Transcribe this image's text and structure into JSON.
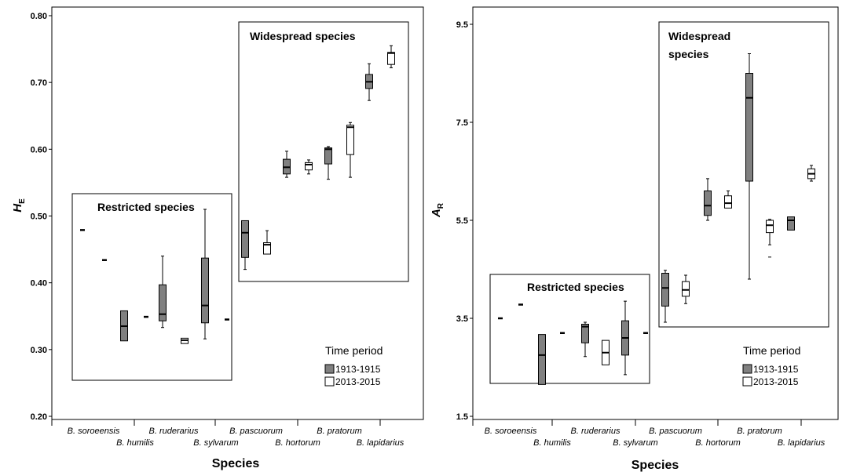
{
  "chart_data": [
    {
      "type": "box",
      "panel": "left",
      "ylabel_main": "H",
      "ylabel_sub": "E",
      "xlabel": "Species",
      "ylim": [
        0.2,
        0.8
      ],
      "yticks": [
        "0.20",
        "0.30",
        "0.40",
        "0.50",
        "0.60",
        "0.70",
        "0.80"
      ],
      "categories": [
        "B. soroeensis",
        "B. humilis",
        "B. ruderarius",
        "B. sylvarum",
        "B. pascuorum",
        "B. hortorum",
        "B. pratorum",
        "B. lapidarius"
      ],
      "series": [
        {
          "name": "1913-1915",
          "color": "#808080",
          "boxes": [
            {
              "min": 0.479,
              "q1": 0.479,
              "median": 0.479,
              "q3": 0.479,
              "max": 0.479
            },
            {
              "min": 0.313,
              "q1": 0.313,
              "median": 0.335,
              "q3": 0.358,
              "max": 0.358
            },
            {
              "min": 0.333,
              "q1": 0.343,
              "median": 0.353,
              "q3": 0.397,
              "max": 0.44
            },
            {
              "min": 0.316,
              "q1": 0.34,
              "median": 0.366,
              "q3": 0.437,
              "max": 0.51
            },
            {
              "min": 0.42,
              "q1": 0.438,
              "median": 0.475,
              "q3": 0.493,
              "max": 0.493
            },
            {
              "min": 0.558,
              "q1": 0.563,
              "median": 0.573,
              "q3": 0.585,
              "max": 0.597
            },
            {
              "min": 0.555,
              "q1": 0.578,
              "median": 0.6,
              "q3": 0.602,
              "max": 0.604
            },
            {
              "min": 0.673,
              "q1": 0.691,
              "median": 0.701,
              "q3": 0.712,
              "max": 0.728
            }
          ]
        },
        {
          "name": "2013-2015",
          "color": "#ffffff",
          "boxes": [
            {
              "min": 0.434,
              "q1": 0.434,
              "median": 0.434,
              "q3": 0.434,
              "max": 0.434
            },
            {
              "min": 0.349,
              "q1": 0.349,
              "median": 0.349,
              "q3": 0.349,
              "max": 0.349
            },
            {
              "min": 0.309,
              "q1": 0.309,
              "median": 0.314,
              "q3": 0.317,
              "max": 0.317
            },
            {
              "min": 0.345,
              "q1": 0.345,
              "median": 0.345,
              "q3": 0.345,
              "max": 0.345
            },
            {
              "min": 0.443,
              "q1": 0.443,
              "median": 0.457,
              "q3": 0.46,
              "max": 0.478
            },
            {
              "min": 0.563,
              "q1": 0.569,
              "median": 0.577,
              "q3": 0.58,
              "max": 0.584
            },
            {
              "min": 0.558,
              "q1": 0.592,
              "median": 0.633,
              "q3": 0.636,
              "max": 0.64
            },
            {
              "min": 0.722,
              "q1": 0.727,
              "median": 0.744,
              "q3": 0.745,
              "max": 0.755
            }
          ]
        }
      ],
      "groups": {
        "restricted": "Restricted species",
        "widespread": "Widespread species"
      },
      "legend": {
        "title": "Time period",
        "entries": [
          "1913-1915",
          "2013-2015"
        ],
        "position": "bottom-right"
      }
    },
    {
      "type": "box",
      "panel": "right",
      "ylabel_main": "A",
      "ylabel_sub": "R",
      "xlabel": "Species",
      "ylim": [
        1.5,
        9.5
      ],
      "yticks": [
        "1.5",
        "3.5",
        "5.5",
        "7.5",
        "9.5"
      ],
      "categories": [
        "B. soroeensis",
        "B. humilis",
        "B. ruderarius",
        "B. sylvarum",
        "B. pascuorum",
        "B. hortorum",
        "B. pratorum",
        "B. lapidarius"
      ],
      "series": [
        {
          "name": "1913-1915",
          "color": "#808080",
          "boxes": [
            {
              "min": 3.5,
              "q1": 3.5,
              "median": 3.5,
              "q3": 3.5,
              "max": 3.5
            },
            {
              "min": 2.15,
              "q1": 2.15,
              "median": 2.75,
              "q3": 3.17,
              "max": 3.17
            },
            {
              "min": 2.72,
              "q1": 3.0,
              "median": 3.33,
              "q3": 3.38,
              "max": 3.42
            },
            {
              "min": 2.35,
              "q1": 2.75,
              "median": 3.1,
              "q3": 3.45,
              "max": 3.85
            },
            {
              "min": 3.42,
              "q1": 3.75,
              "median": 4.12,
              "q3": 4.42,
              "max": 4.48
            },
            {
              "min": 5.5,
              "q1": 5.6,
              "median": 5.8,
              "q3": 6.1,
              "max": 6.35
            },
            {
              "min": 4.3,
              "q1": 6.3,
              "median": 8.0,
              "q3": 8.5,
              "max": 8.9
            },
            {
              "min": 5.3,
              "q1": 5.3,
              "median": 5.5,
              "q3": 5.57,
              "max": 5.57
            }
          ]
        },
        {
          "name": "2013-2015",
          "color": "#ffffff",
          "boxes": [
            {
              "min": 3.78,
              "q1": 3.78,
              "median": 3.78,
              "q3": 3.78,
              "max": 3.78
            },
            {
              "min": 3.2,
              "q1": 3.2,
              "median": 3.2,
              "q3": 3.2,
              "max": 3.2
            },
            {
              "min": 2.55,
              "q1": 2.55,
              "median": 2.8,
              "q3": 3.05,
              "max": 3.05
            },
            {
              "min": 3.2,
              "q1": 3.2,
              "median": 3.2,
              "q3": 3.2,
              "max": 3.2
            },
            {
              "min": 3.8,
              "q1": 3.95,
              "median": 4.08,
              "q3": 4.25,
              "max": 4.38
            },
            {
              "min": 5.75,
              "q1": 5.75,
              "median": 5.85,
              "q3": 6.0,
              "max": 6.1
            },
            {
              "min": 5.0,
              "q1": 5.25,
              "median": 5.4,
              "q3": 5.5,
              "max": 5.52
            },
            {
              "min": 6.3,
              "q1": 6.35,
              "median": 6.45,
              "q3": 6.55,
              "max": 6.62
            }
          ]
        }
      ],
      "outliers": [
        {
          "category": "B. pratorum",
          "series": "2013-2015",
          "value": 4.75
        }
      ],
      "groups": {
        "restricted": "Restricted species",
        "widespread": "Widespread species"
      },
      "legend": {
        "title": "Time period",
        "entries": [
          "1913-1915",
          "2013-2015"
        ],
        "position": "bottom-right"
      }
    }
  ]
}
